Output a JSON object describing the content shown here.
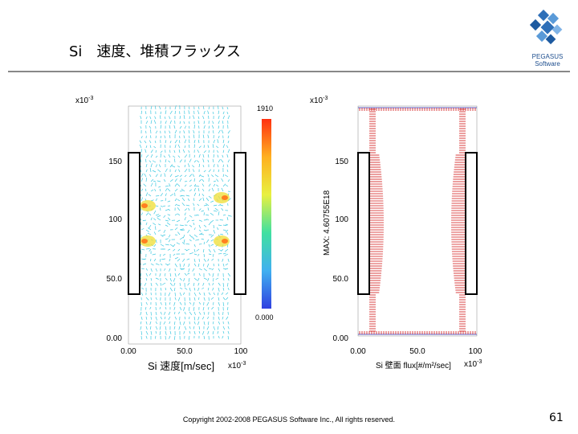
{
  "slide": {
    "title": "Si　速度、堆積フラックス",
    "footer": "Copyright 2002-2008 PEGASUS Software Inc., All rights reserved.",
    "page_number": "61",
    "logo": {
      "line1": "PEGASUS",
      "line2": "Software"
    }
  },
  "left_plot": {
    "x_exponent_label": "x10",
    "x_exponent_sup": "-3",
    "y_exponent_label": "x10",
    "y_exponent_sup": "-3",
    "y_ticks": [
      "150",
      "100",
      "50.0",
      "0.00"
    ],
    "x_ticks": [
      "0.00",
      "50.0",
      "100"
    ],
    "xlabel": "Si 速度[m/sec]",
    "colorbar_max": "1910",
    "colorbar_min": "0.000"
  },
  "right_plot": {
    "y_exponent_label": "x10",
    "y_exponent_sup": "-3",
    "x_exponent_label": "x10",
    "x_exponent_sup": "-3",
    "y_ticks": [
      "150",
      "100",
      "50.0",
      "0.00"
    ],
    "x_ticks": [
      "0.00",
      "50.0",
      "100"
    ],
    "xlabel": "Si 壁面 flux[#/m²/sec]",
    "max_label": "MAX: 4.60755E18"
  },
  "colors": {
    "arrow_cyan": "#3cc8e0",
    "flux_red": "#d01010",
    "flux_blue": "#2030c0",
    "rule": "#888888"
  }
}
